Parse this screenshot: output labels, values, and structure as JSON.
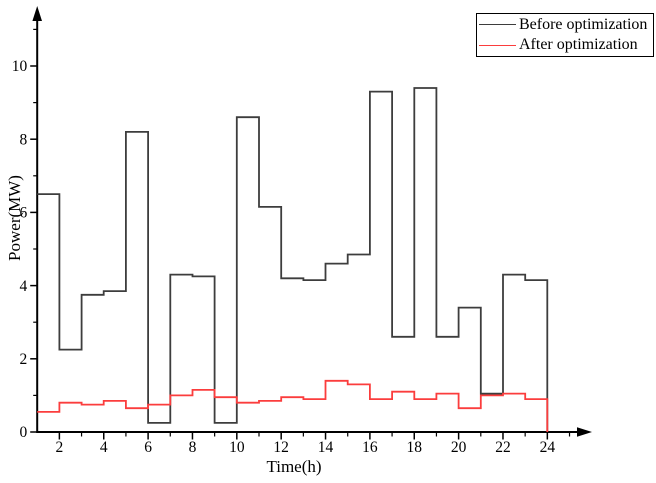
{
  "figure": {
    "background": "#ffffff",
    "axis_color": "#000000"
  },
  "chart_data": {
    "type": "line",
    "subtype": "step-post",
    "title": "",
    "xlabel": "Time(h)",
    "ylabel": "Power(MW)",
    "x_start": 1,
    "x_end": 24,
    "xlim": [
      1,
      25.5
    ],
    "ylim": [
      0,
      11.3
    ],
    "grid": "off",
    "x_major_ticks": [
      2,
      4,
      6,
      8,
      10,
      12,
      14,
      16,
      18,
      20,
      22,
      24
    ],
    "x_minor_ticks": [
      3,
      5,
      7,
      9,
      11,
      13,
      15,
      17,
      19,
      21,
      23,
      25
    ],
    "y_major_ticks": [
      0,
      2,
      4,
      6,
      8,
      10
    ],
    "y_minor_ticks": [
      1,
      3,
      5,
      7,
      9,
      11
    ],
    "hours": [
      1,
      2,
      3,
      4,
      5,
      6,
      7,
      8,
      9,
      10,
      11,
      12,
      13,
      14,
      15,
      16,
      17,
      18,
      19,
      20,
      21,
      22,
      23
    ],
    "series": [
      {
        "name": "Before optimization",
        "color": "#3d3d3d",
        "values": [
          6.5,
          2.25,
          3.75,
          3.85,
          8.2,
          0.25,
          4.3,
          4.25,
          0.25,
          8.6,
          6.15,
          4.2,
          4.15,
          4.6,
          4.85,
          9.3,
          2.6,
          9.4,
          2.6,
          3.4,
          1.05,
          4.3,
          4.15
        ]
      },
      {
        "name": "After optimization",
        "color": "#fb3d3d",
        "values": [
          0.55,
          0.8,
          0.75,
          0.85,
          0.65,
          0.75,
          1.0,
          1.15,
          0.95,
          0.8,
          0.85,
          0.95,
          0.9,
          1.4,
          1.3,
          0.9,
          1.1,
          0.9,
          1.05,
          0.65,
          1.0,
          1.05,
          0.9
        ]
      }
    ],
    "legend": {
      "position": "top-right",
      "entries": [
        "Before optimization",
        "After optimization"
      ]
    }
  }
}
